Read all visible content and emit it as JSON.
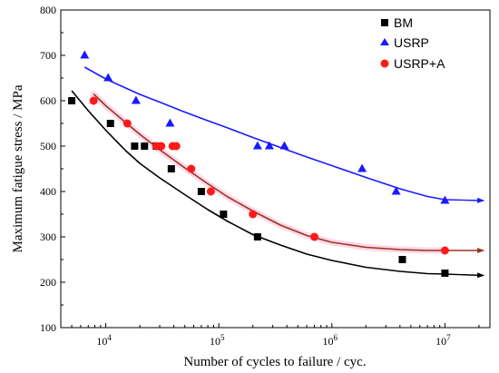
{
  "chart_data": {
    "type": "scatter",
    "xscale": "log",
    "xlabel": "Number of cycles to failure / cyc.",
    "ylabel": "Maximum fatigue stress / MPa",
    "xlim": [
      4000,
      25000000
    ],
    "ylim": [
      100,
      800
    ],
    "yticks": [
      100,
      200,
      300,
      400,
      500,
      600,
      700,
      800
    ],
    "xticks": [
      {
        "value": 10000,
        "base": "10",
        "exp": "4"
      },
      {
        "value": 100000,
        "base": "10",
        "exp": "5"
      },
      {
        "value": 1000000,
        "base": "10",
        "exp": "6"
      },
      {
        "value": 10000000,
        "base": "10",
        "exp": "7"
      }
    ],
    "grid": false,
    "legend_position": "top-right",
    "series": [
      {
        "name": "BM",
        "marker": "square",
        "color": "#000000",
        "points": [
          [
            5000,
            600
          ],
          [
            11000,
            550
          ],
          [
            18000,
            500
          ],
          [
            22000,
            500
          ],
          [
            28000,
            500
          ],
          [
            38000,
            450
          ],
          [
            70000,
            400
          ],
          [
            110000,
            350
          ],
          [
            220000,
            300
          ],
          [
            4200000,
            250
          ],
          [
            10000000,
            220
          ]
        ],
        "fit": [
          [
            5000,
            622
          ],
          [
            7000,
            578
          ],
          [
            10000,
            535
          ],
          [
            15000,
            490
          ],
          [
            20000,
            462
          ],
          [
            30000,
            430
          ],
          [
            50000,
            393
          ],
          [
            80000,
            360
          ],
          [
            120000,
            334
          ],
          [
            200000,
            305
          ],
          [
            350000,
            282
          ],
          [
            600000,
            262
          ],
          [
            1000000,
            248
          ],
          [
            2000000,
            233
          ],
          [
            4000000,
            224
          ],
          [
            7000000,
            219
          ],
          [
            10000000,
            218
          ]
        ],
        "fit_tail_end": [
          22000000,
          215
        ]
      },
      {
        "name": "USRP",
        "marker": "triangle",
        "color": "#1a1aff",
        "points": [
          [
            6500,
            700
          ],
          [
            10500,
            650
          ],
          [
            18500,
            600
          ],
          [
            37000,
            550
          ],
          [
            220000,
            500
          ],
          [
            280000,
            500
          ],
          [
            380000,
            500
          ],
          [
            1850000,
            450
          ],
          [
            3700000,
            400
          ],
          [
            10000000,
            380
          ]
        ],
        "fit": [
          [
            6500,
            674
          ],
          [
            10000,
            648
          ],
          [
            15000,
            628
          ],
          [
            20000,
            614
          ],
          [
            30000,
            597
          ],
          [
            50000,
            575
          ],
          [
            80000,
            556
          ],
          [
            120000,
            540
          ],
          [
            200000,
            519
          ],
          [
            350000,
            497
          ],
          [
            600000,
            476
          ],
          [
            1000000,
            457
          ],
          [
            2000000,
            431
          ],
          [
            4000000,
            406
          ],
          [
            7000000,
            389
          ],
          [
            10000000,
            382
          ]
        ],
        "fit_tail_end": [
          22000000,
          380
        ]
      },
      {
        "name": "USRP+A",
        "marker": "circle",
        "color": "#ff1a1a",
        "points": [
          [
            7800,
            600
          ],
          [
            15500,
            550
          ],
          [
            28000,
            500
          ],
          [
            31000,
            500
          ],
          [
            39000,
            500
          ],
          [
            42000,
            500
          ],
          [
            57000,
            450
          ],
          [
            85000,
            400
          ],
          [
            200000,
            350
          ],
          [
            700000,
            300
          ],
          [
            10000000,
            270
          ]
        ],
        "fit": [
          [
            7800,
            615
          ],
          [
            10000,
            589
          ],
          [
            15000,
            552
          ],
          [
            20000,
            526
          ],
          [
            30000,
            492
          ],
          [
            50000,
            452
          ],
          [
            80000,
            417
          ],
          [
            120000,
            388
          ],
          [
            200000,
            357
          ],
          [
            350000,
            326
          ],
          [
            600000,
            303
          ],
          [
            1000000,
            288
          ],
          [
            2000000,
            277
          ],
          [
            4000000,
            272
          ],
          [
            7000000,
            270
          ],
          [
            10000000,
            270
          ]
        ],
        "fit_tail_end": [
          22000000,
          270
        ]
      }
    ]
  }
}
